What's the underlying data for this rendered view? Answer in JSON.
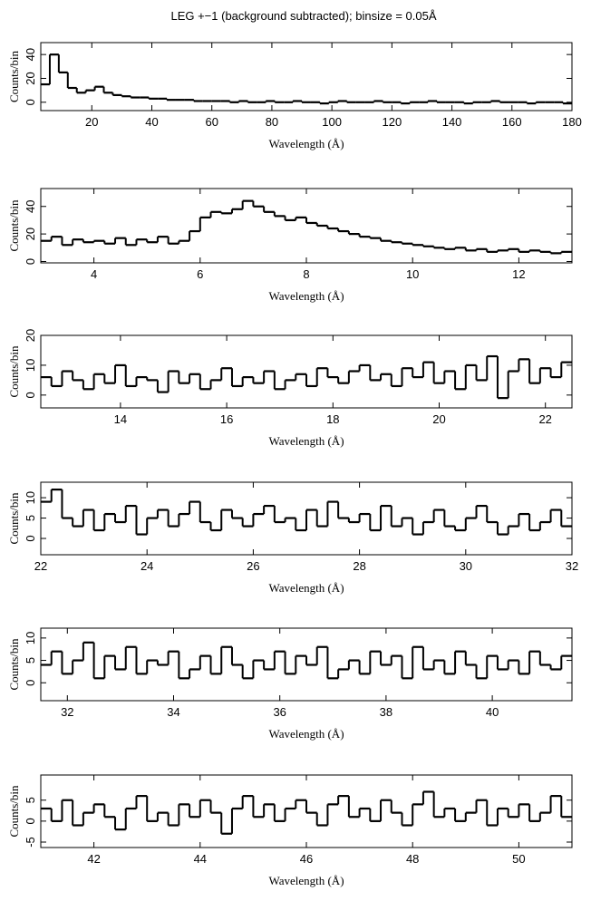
{
  "chart_data": [
    {
      "type": "step",
      "title": "LEG +−1 (background subtracted); binsize = 0.05Å",
      "xlabel": "Wavelength (Å)",
      "ylabel": "Counts/bin",
      "color": "#000000",
      "x": [
        3,
        6,
        9,
        12,
        15,
        18,
        21,
        24,
        27,
        30,
        33,
        36,
        39,
        42,
        45,
        48,
        51,
        54,
        57,
        60,
        63,
        66,
        69,
        72,
        75,
        78,
        81,
        84,
        87,
        90,
        93,
        96,
        99,
        102,
        105,
        108,
        111,
        114,
        117,
        120,
        123,
        126,
        129,
        132,
        135,
        138,
        141,
        144,
        147,
        150,
        153,
        156,
        159,
        162,
        165,
        168,
        171,
        174,
        177
      ],
      "values": [
        15,
        40,
        25,
        12,
        8,
        10,
        13,
        8,
        6,
        5,
        4,
        4,
        3,
        3,
        2,
        2,
        2,
        1,
        1,
        1,
        1,
        0,
        1,
        0,
        0,
        1,
        0,
        0,
        1,
        0,
        0,
        -1,
        0,
        1,
        0,
        0,
        0,
        1,
        0,
        0,
        -1,
        0,
        0,
        1,
        0,
        0,
        0,
        -1,
        0,
        0,
        1,
        0,
        0,
        0,
        -1,
        0,
        0,
        0,
        -1
      ],
      "xlim": [
        3,
        180
      ],
      "ylim": [
        -7,
        50
      ],
      "xticks": [
        20,
        40,
        60,
        80,
        100,
        120,
        140,
        160,
        180
      ],
      "yticks": [
        0,
        20,
        40
      ]
    },
    {
      "type": "step",
      "xlabel": "Wavelength (Å)",
      "ylabel": "Counts/bin",
      "color": "#000000",
      "x": [
        3.0,
        3.2,
        3.4,
        3.6,
        3.8,
        4.0,
        4.2,
        4.4,
        4.6,
        4.8,
        5.0,
        5.2,
        5.4,
        5.6,
        5.8,
        6.0,
        6.2,
        6.4,
        6.6,
        6.8,
        7.0,
        7.2,
        7.4,
        7.6,
        7.8,
        8.0,
        8.2,
        8.4,
        8.6,
        8.8,
        9.0,
        9.2,
        9.4,
        9.6,
        9.8,
        10.0,
        10.2,
        10.4,
        10.6,
        10.8,
        11.0,
        11.2,
        11.4,
        11.6,
        11.8,
        12.0,
        12.2,
        12.4,
        12.6,
        12.8
      ],
      "values": [
        15,
        18,
        12,
        16,
        14,
        15,
        13,
        17,
        12,
        16,
        14,
        18,
        13,
        15,
        22,
        32,
        36,
        35,
        38,
        44,
        40,
        36,
        33,
        30,
        32,
        28,
        26,
        24,
        22,
        20,
        18,
        17,
        15,
        14,
        13,
        12,
        11,
        10,
        9,
        10,
        8,
        9,
        7,
        8,
        9,
        7,
        8,
        7,
        6,
        7
      ],
      "xlim": [
        3,
        13
      ],
      "ylim": [
        -1,
        53
      ],
      "xticks": [
        4,
        6,
        8,
        10,
        12
      ],
      "yticks": [
        0,
        20,
        40
      ]
    },
    {
      "type": "step",
      "xlabel": "Wavelength (Å)",
      "ylabel": "Counts/bin",
      "color": "#000000",
      "x": [
        12.5,
        12.7,
        12.9,
        13.1,
        13.3,
        13.5,
        13.7,
        13.9,
        14.1,
        14.3,
        14.5,
        14.7,
        14.9,
        15.1,
        15.3,
        15.5,
        15.7,
        15.9,
        16.1,
        16.3,
        16.5,
        16.7,
        16.9,
        17.1,
        17.3,
        17.5,
        17.7,
        17.9,
        18.1,
        18.3,
        18.5,
        18.7,
        18.9,
        19.1,
        19.3,
        19.5,
        19.7,
        19.9,
        20.1,
        20.3,
        20.5,
        20.7,
        20.9,
        21.1,
        21.3,
        21.5,
        21.7,
        21.9,
        22.1,
        22.3
      ],
      "values": [
        6,
        3,
        8,
        5,
        2,
        7,
        4,
        10,
        3,
        6,
        5,
        1,
        8,
        4,
        7,
        2,
        5,
        9,
        3,
        6,
        4,
        8,
        2,
        5,
        7,
        3,
        9,
        6,
        4,
        8,
        10,
        5,
        7,
        3,
        9,
        6,
        11,
        4,
        8,
        2,
        10,
        5,
        13,
        -1,
        8,
        12,
        4,
        9,
        6,
        11
      ],
      "xlim": [
        12.5,
        22.5
      ],
      "ylim": [
        -4.3,
        20
      ],
      "xticks": [
        14,
        16,
        18,
        20,
        22
      ],
      "yticks": [
        0,
        10,
        20
      ]
    },
    {
      "type": "step",
      "xlabel": "Wavelength (Å)",
      "ylabel": "Counts/bin",
      "color": "#000000",
      "x": [
        22.0,
        22.2,
        22.4,
        22.6,
        22.8,
        23.0,
        23.2,
        23.4,
        23.6,
        23.8,
        24.0,
        24.2,
        24.4,
        24.6,
        24.8,
        25.0,
        25.2,
        25.4,
        25.6,
        25.8,
        26.0,
        26.2,
        26.4,
        26.6,
        26.8,
        27.0,
        27.2,
        27.4,
        27.6,
        27.8,
        28.0,
        28.2,
        28.4,
        28.6,
        28.8,
        29.0,
        29.2,
        29.4,
        29.6,
        29.8,
        30.0,
        30.2,
        30.4,
        30.6,
        30.8,
        31.0,
        31.2,
        31.4,
        31.6,
        31.8
      ],
      "values": [
        9,
        12,
        5,
        3,
        7,
        2,
        6,
        4,
        8,
        1,
        5,
        7,
        3,
        6,
        9,
        4,
        2,
        7,
        5,
        3,
        6,
        8,
        4,
        5,
        2,
        7,
        3,
        9,
        5,
        4,
        6,
        2,
        8,
        3,
        5,
        1,
        4,
        7,
        3,
        2,
        5,
        8,
        4,
        1,
        3,
        6,
        2,
        4,
        7,
        3
      ],
      "xlim": [
        22,
        32
      ],
      "ylim": [
        -4,
        13.8
      ],
      "xticks": [
        22,
        24,
        26,
        28,
        30,
        32
      ],
      "yticks": [
        0,
        5,
        10
      ]
    },
    {
      "type": "step",
      "xlabel": "Wavelength (Å)",
      "ylabel": "Counts/bin",
      "color": "#000000",
      "x": [
        31.5,
        31.7,
        31.9,
        32.1,
        32.3,
        32.5,
        32.7,
        32.9,
        33.1,
        33.3,
        33.5,
        33.7,
        33.9,
        34.1,
        34.3,
        34.5,
        34.7,
        34.9,
        35.1,
        35.3,
        35.5,
        35.7,
        35.9,
        36.1,
        36.3,
        36.5,
        36.7,
        36.9,
        37.1,
        37.3,
        37.5,
        37.7,
        37.9,
        38.1,
        38.3,
        38.5,
        38.7,
        38.9,
        39.1,
        39.3,
        39.5,
        39.7,
        39.9,
        40.1,
        40.3,
        40.5,
        40.7,
        40.9,
        41.1,
        41.3
      ],
      "values": [
        4,
        7,
        2,
        5,
        9,
        1,
        6,
        3,
        8,
        2,
        5,
        4,
        7,
        1,
        3,
        6,
        2,
        8,
        4,
        1,
        5,
        3,
        7,
        2,
        6,
        4,
        8,
        1,
        3,
        5,
        2,
        7,
        4,
        6,
        1,
        8,
        3,
        5,
        2,
        7,
        4,
        1,
        6,
        3,
        5,
        2,
        7,
        4,
        3,
        6
      ],
      "xlim": [
        31.5,
        41.5
      ],
      "ylim": [
        -4,
        12.2
      ],
      "xticks": [
        32,
        34,
        36,
        38,
        40
      ],
      "yticks": [
        0,
        5,
        10
      ]
    },
    {
      "type": "step",
      "xlabel": "Wavelength (Å)",
      "ylabel": "Counts/bin",
      "color": "#000000",
      "x": [
        41.0,
        41.2,
        41.4,
        41.6,
        41.8,
        42.0,
        42.2,
        42.4,
        42.6,
        42.8,
        43.0,
        43.2,
        43.4,
        43.6,
        43.8,
        44.0,
        44.2,
        44.4,
        44.6,
        44.8,
        45.0,
        45.2,
        45.4,
        45.6,
        45.8,
        46.0,
        46.2,
        46.4,
        46.6,
        46.8,
        47.0,
        47.2,
        47.4,
        47.6,
        47.8,
        48.0,
        48.2,
        48.4,
        48.6,
        48.8,
        49.0,
        49.2,
        49.4,
        49.6,
        49.8,
        50.0,
        50.2,
        50.4,
        50.6,
        50.8
      ],
      "values": [
        3,
        0,
        5,
        -1,
        2,
        4,
        1,
        -2,
        3,
        6,
        0,
        2,
        -1,
        4,
        1,
        5,
        2,
        -3,
        3,
        6,
        1,
        4,
        0,
        3,
        5,
        2,
        -1,
        4,
        6,
        1,
        3,
        0,
        5,
        2,
        -1,
        4,
        7,
        1,
        3,
        0,
        2,
        5,
        -1,
        3,
        1,
        4,
        0,
        2,
        6,
        1
      ],
      "xlim": [
        41,
        51
      ],
      "ylim": [
        -6.3,
        11
      ],
      "xticks": [
        42,
        44,
        46,
        48,
        50
      ],
      "yticks": [
        -5,
        0,
        5
      ]
    }
  ]
}
